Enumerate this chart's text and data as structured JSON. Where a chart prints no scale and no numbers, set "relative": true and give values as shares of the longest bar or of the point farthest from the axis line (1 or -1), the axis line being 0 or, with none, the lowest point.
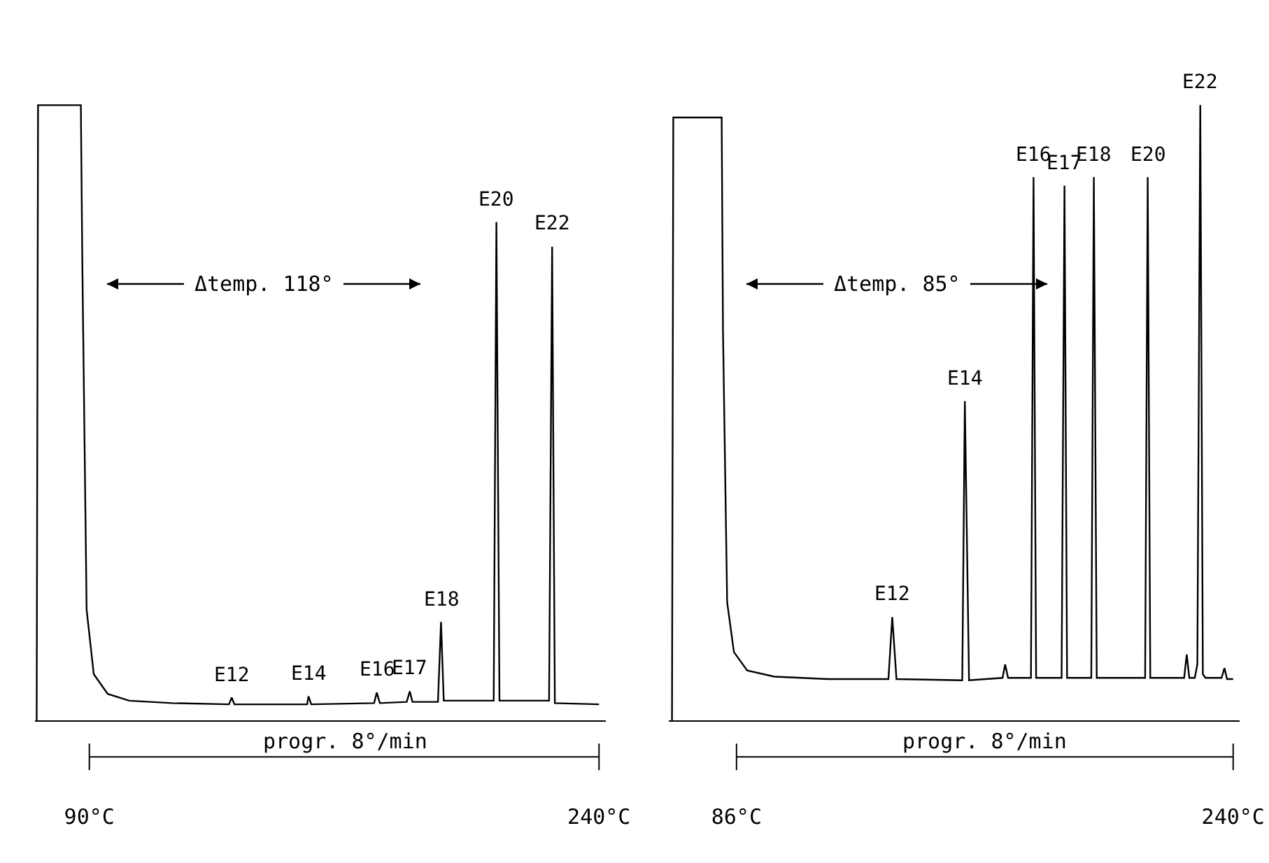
{
  "chart_data": [
    {
      "type": "line",
      "relative": true,
      "marker": "none",
      "grid": false,
      "tick_labels": "x",
      "x": [
        74.5,
        74.9,
        87.5,
        87.9,
        89.2,
        91.3,
        95.4,
        101.7,
        114.3,
        131.1,
        131.9,
        132.7,
        154.1,
        154.5,
        155.3,
        173.8,
        174.6,
        175.5,
        183.4,
        184.3,
        185.1,
        192.6,
        193.5,
        194.3,
        209.0,
        209.8,
        210.7,
        225.3,
        226.2,
        227.0,
        240.0
      ],
      "xlim": [
        74,
        242
      ],
      "xticks": [
        {
          "value": 90,
          "label": "90°C"
        },
        {
          "value": 240,
          "label": "240°C"
        }
      ],
      "series": [
        {
          "color": "#000000",
          "values": [
            0,
            1,
            1,
            0.76,
            0.18,
            0.075,
            0.043,
            0.032,
            0.028,
            0.026,
            0.037,
            0.026,
            0.026,
            0.039,
            0.026,
            0.028,
            0.045,
            0.028,
            0.03,
            0.047,
            0.03,
            0.03,
            0.16,
            0.032,
            0.032,
            0.81,
            0.032,
            0.032,
            0.77,
            0.028,
            0.026
          ]
        }
      ],
      "annotations": [
        {
          "text": "E12",
          "x": 131.9,
          "y": 0.037
        },
        {
          "text": "E14",
          "x": 154.5,
          "y": 0.039
        },
        {
          "text": "E16",
          "x": 174.6,
          "y": 0.045
        },
        {
          "text": "E17",
          "x": 184.3,
          "y": 0.047
        },
        {
          "text": "E18",
          "x": 193.5,
          "y": 0.16
        },
        {
          "text": "E20",
          "x": 209.8,
          "y": 0.81
        },
        {
          "text": "E22",
          "x": 226.2,
          "y": 0.77
        },
        "Δtemp. 118°",
        "progr. 8°/min"
      ]
    },
    {
      "type": "line",
      "relative": true,
      "marker": "none",
      "grid": false,
      "tick_labels": "x",
      "x": [
        66.0,
        66.4,
        81.4,
        81.8,
        83.1,
        85.2,
        89.3,
        97.7,
        114.3,
        133.1,
        134.3,
        135.6,
        156.0,
        156.8,
        158.1,
        168.5,
        169.3,
        170.2,
        177.3,
        178.1,
        178.9,
        186.8,
        187.7,
        188.5,
        196.0,
        196.8,
        197.7,
        212.7,
        213.5,
        214.3,
        224.8,
        225.6,
        226.4,
        228.1,
        228.9,
        229.8,
        230.6,
        231.4,
        236.4,
        237.3,
        238.1,
        240.0
      ],
      "xlim": [
        65,
        242
      ],
      "xticks": [
        {
          "value": 86,
          "label": "86°C"
        },
        {
          "value": 240,
          "label": "240°C"
        }
      ],
      "series": [
        {
          "color": "#000000",
          "values": [
            0,
            0.98,
            0.98,
            0.636,
            0.192,
            0.111,
            0.081,
            0.071,
            0.067,
            0.067,
            0.168,
            0.067,
            0.065,
            0.519,
            0.065,
            0.069,
            0.091,
            0.069,
            0.069,
            0.883,
            0.069,
            0.069,
            0.869,
            0.069,
            0.069,
            0.883,
            0.069,
            0.069,
            0.883,
            0.069,
            0.069,
            0.107,
            0.069,
            0.069,
            0.091,
            1,
            0.075,
            0.069,
            0.069,
            0.085,
            0.067,
            0.067
          ]
        }
      ],
      "annotations": [
        {
          "text": "E12",
          "x": 134.3,
          "y": 0.168
        },
        {
          "text": "E14",
          "x": 156.8,
          "y": 0.519
        },
        {
          "text": "E16",
          "x": 178.1,
          "y": 0.883
        },
        {
          "text": "E17",
          "x": 187.7,
          "y": 0.869
        },
        {
          "text": "E18",
          "x": 196.8,
          "y": 0.883
        },
        {
          "text": "E20",
          "x": 213.5,
          "y": 0.883
        },
        {
          "text": "E22",
          "x": 229.8,
          "y": 1
        },
        "Δtemp. 85°",
        "progr. 8°/min"
      ]
    }
  ]
}
